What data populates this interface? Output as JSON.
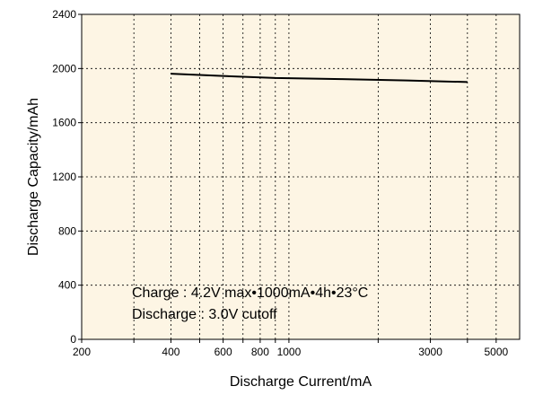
{
  "chart_data": {
    "type": "line",
    "title": "",
    "xlabel": "Discharge Current/mA",
    "ylabel": "Discharge Capacity/mAh",
    "x_scale": "log",
    "xlim": [
      200,
      6000
    ],
    "ylim": [
      0,
      2400
    ],
    "x_ticks": [
      200,
      400,
      600,
      800,
      1000,
      3000,
      5000
    ],
    "x_tick_labels": [
      "200",
      "400",
      "600",
      "800",
      "1000",
      "3000",
      "5000"
    ],
    "x_minor_grid": [
      300,
      500,
      700,
      900,
      2000,
      4000
    ],
    "y_ticks": [
      0,
      400,
      800,
      1200,
      1600,
      2000,
      2400
    ],
    "y_tick_labels": [
      "0",
      "400",
      "800",
      "1200",
      "1600",
      "2000",
      "2400"
    ],
    "grid": true,
    "plot_background": "#fdf5e4",
    "line_color": "#000000",
    "series": [
      {
        "x": [
          400,
          600,
          900,
          1500,
          2500,
          4000
        ],
        "y": [
          1962,
          1945,
          1930,
          1922,
          1912,
          1900
        ]
      }
    ],
    "annotations": [
      "Charge : 4.2V max•1000mA•4h•23°C",
      "Discharge : 3.0V cutoff"
    ]
  }
}
